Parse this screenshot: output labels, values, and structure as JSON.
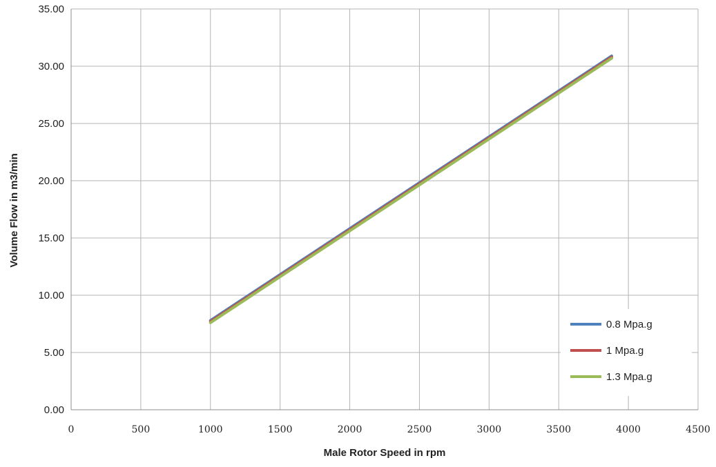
{
  "chart_data": {
    "type": "line",
    "title": "",
    "xlabel": "Male Rotor Speed in rpm",
    "ylabel": "Volume Flow in m3/min",
    "xlim": [
      0,
      4500
    ],
    "ylim": [
      0,
      35
    ],
    "x_ticks": [
      "0",
      "500",
      "1000",
      "1500",
      "2000",
      "2500",
      "3000",
      "3500",
      "4000",
      "4500"
    ],
    "y_ticks": [
      "0.00",
      "5.00",
      "10.00",
      "15.00",
      "20.00",
      "25.00",
      "30.00",
      "35.00"
    ],
    "grid": true,
    "legend_position": "bottom-right",
    "series": [
      {
        "name": "0.8 Mpa.g",
        "color": "#4f81bd",
        "x": [
          1000,
          3880
        ],
        "y": [
          7.8,
          30.9
        ]
      },
      {
        "name": "1 Mpa.g",
        "color": "#c0504d",
        "x": [
          1000,
          3880
        ],
        "y": [
          7.7,
          30.8
        ]
      },
      {
        "name": "1.3 Mpa.g",
        "color": "#9bbb59",
        "x": [
          1000,
          3880
        ],
        "y": [
          7.6,
          30.7
        ]
      }
    ]
  }
}
